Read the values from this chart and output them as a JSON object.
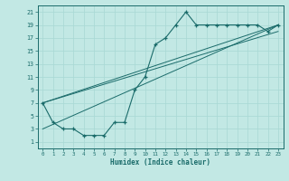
{
  "xlabel": "Humidex (Indice chaleur)",
  "bg_color": "#c2e8e4",
  "line_color": "#1a6b6a",
  "grid_color": "#a8d8d4",
  "xlim": [
    -0.5,
    23.5
  ],
  "ylim": [
    0.0,
    22.0
  ],
  "xticks": [
    0,
    1,
    2,
    3,
    4,
    5,
    6,
    7,
    8,
    9,
    10,
    11,
    12,
    13,
    14,
    15,
    16,
    17,
    18,
    19,
    20,
    21,
    22,
    23
  ],
  "yticks": [
    1,
    3,
    5,
    7,
    9,
    11,
    13,
    15,
    17,
    19,
    21
  ],
  "curve_x": [
    0,
    1,
    2,
    3,
    4,
    5,
    6,
    7,
    8,
    9,
    10,
    11,
    12,
    13,
    14,
    15,
    16,
    17,
    18,
    19,
    20,
    21,
    22,
    23
  ],
  "curve_y": [
    7,
    4,
    3,
    3,
    2,
    2,
    2,
    4,
    4,
    9,
    11,
    16,
    17,
    19,
    21,
    19,
    19,
    19,
    19,
    19,
    19,
    19,
    18,
    19
  ],
  "line1_x": [
    0,
    23
  ],
  "line1_y": [
    7,
    19
  ],
  "line2_x": [
    0,
    23
  ],
  "line2_y": [
    7,
    18
  ],
  "line3_x": [
    0,
    23
  ],
  "line3_y": [
    3,
    19
  ]
}
